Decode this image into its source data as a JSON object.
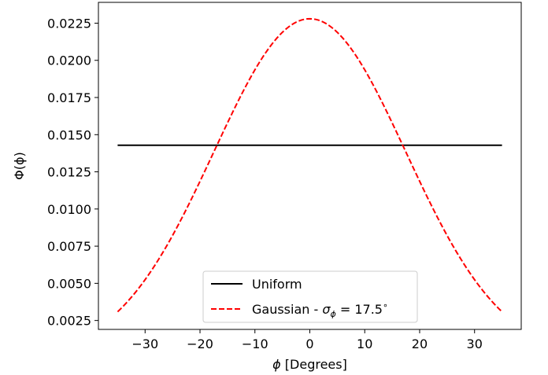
{
  "chart_data": {
    "type": "line",
    "title": "",
    "xlabel": "[Degrees]",
    "xlabel_symbol": "ϕ",
    "ylabel": "Φ(ϕ)",
    "xlim": [
      -38.5,
      38.5
    ],
    "ylim": [
      0.0019,
      0.0239
    ],
    "xticks": [
      -30,
      -20,
      -10,
      0,
      10,
      20,
      30
    ],
    "xtick_labels": [
      "−30",
      "−20",
      "−10",
      "0",
      "10",
      "20",
      "30"
    ],
    "yticks": [
      0.0025,
      0.005,
      0.0075,
      0.01,
      0.0125,
      0.015,
      0.0175,
      0.02,
      0.0225
    ],
    "ytick_labels": [
      "0.0025",
      "0.0050",
      "0.0075",
      "0.0100",
      "0.0125",
      "0.0150",
      "0.0175",
      "0.0200",
      "0.0225"
    ],
    "grid": false,
    "legend_position": "lower center",
    "series": [
      {
        "name": "Uniform",
        "style": "solid",
        "color": "#000000",
        "x": [
          -35,
          35
        ],
        "y": [
          0.01429,
          0.01429
        ]
      },
      {
        "name": "Gaussian - σ",
        "name_subscript": "ϕ",
        "name_value": " = 17.5",
        "name_unit": "∘",
        "style": "dashed",
        "color": "#ff0000",
        "function": "gaussian",
        "mu": 0,
        "sigma": 17.5,
        "x_range": [
          -35,
          35
        ],
        "samples": 141
      }
    ]
  }
}
